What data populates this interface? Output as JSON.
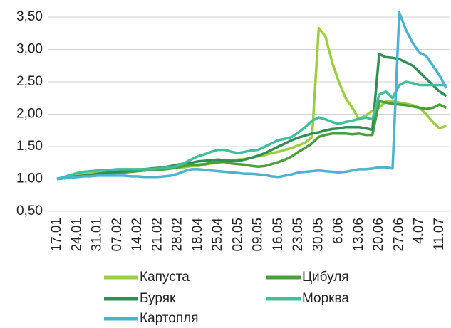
{
  "chart_data": {
    "type": "line",
    "categories": [
      "17.01",
      null,
      null,
      "24.01",
      null,
      null,
      "31.01",
      null,
      null,
      "07.02",
      null,
      null,
      "14.02",
      null,
      null,
      "21.02",
      null,
      null,
      "28.02",
      null,
      null,
      "18.04",
      null,
      null,
      "25.04",
      null,
      null,
      "02.05",
      null,
      null,
      "09.05",
      null,
      null,
      "16.05",
      null,
      null,
      "23.05",
      null,
      null,
      "30.05",
      null,
      null,
      "6.06",
      null,
      null,
      "13.06",
      null,
      null,
      "20.06",
      null,
      null,
      "27.06",
      null,
      null,
      "4.07",
      null,
      null,
      "11.07",
      null
    ],
    "series": [
      {
        "name": "Капуста",
        "color": "#9ccf3e",
        "values": [
          1.0,
          1.02,
          1.04,
          1.06,
          1.07,
          1.08,
          1.1,
          1.11,
          1.12,
          1.13,
          1.13,
          1.14,
          1.14,
          1.15,
          1.15,
          1.15,
          1.15,
          1.16,
          1.17,
          1.18,
          1.2,
          1.2,
          1.22,
          1.24,
          1.25,
          1.27,
          1.28,
          1.3,
          1.31,
          1.33,
          1.35,
          1.37,
          1.4,
          1.42,
          1.45,
          1.48,
          1.52,
          1.56,
          1.65,
          3.33,
          3.2,
          2.8,
          2.5,
          2.25,
          2.1,
          1.92,
          1.98,
          2.05,
          2.1,
          2.2,
          2.2,
          2.18,
          2.16,
          2.14,
          2.1,
          2.0,
          1.88,
          1.78,
          1.82
        ]
      },
      {
        "name": "Цибуля",
        "color": "#4c9e3b",
        "values": [
          1.0,
          1.01,
          1.02,
          1.03,
          1.04,
          1.05,
          1.06,
          1.07,
          1.08,
          1.09,
          1.1,
          1.11,
          1.12,
          1.13,
          1.14,
          1.14,
          1.15,
          1.16,
          1.18,
          1.2,
          1.21,
          1.22,
          1.23,
          1.25,
          1.26,
          1.26,
          1.24,
          1.23,
          1.22,
          1.2,
          1.19,
          1.2,
          1.23,
          1.26,
          1.3,
          1.35,
          1.42,
          1.48,
          1.55,
          1.65,
          1.68,
          1.7,
          1.7,
          1.7,
          1.69,
          1.7,
          1.68,
          1.68,
          2.2,
          2.18,
          2.16,
          2.15,
          2.14,
          2.12,
          2.1,
          2.08,
          2.1,
          2.15,
          2.1
        ]
      },
      {
        "name": "Буряк",
        "color": "#2f8f55",
        "values": [
          1.0,
          1.01,
          1.03,
          1.04,
          1.05,
          1.06,
          1.08,
          1.09,
          1.1,
          1.11,
          1.12,
          1.13,
          1.14,
          1.15,
          1.16,
          1.17,
          1.18,
          1.2,
          1.22,
          1.24,
          1.25,
          1.27,
          1.28,
          1.29,
          1.3,
          1.29,
          1.28,
          1.28,
          1.3,
          1.33,
          1.36,
          1.4,
          1.45,
          1.5,
          1.55,
          1.6,
          1.64,
          1.67,
          1.7,
          1.72,
          1.75,
          1.77,
          1.78,
          1.8,
          1.8,
          1.8,
          1.78,
          1.76,
          2.93,
          2.88,
          2.87,
          2.85,
          2.8,
          2.75,
          2.65,
          2.55,
          2.45,
          2.35,
          2.28
        ]
      },
      {
        "name": "Морква",
        "color": "#3fbf9b",
        "values": [
          1.0,
          1.03,
          1.06,
          1.09,
          1.11,
          1.12,
          1.13,
          1.14,
          1.14,
          1.15,
          1.15,
          1.15,
          1.15,
          1.15,
          1.15,
          1.16,
          1.17,
          1.18,
          1.2,
          1.25,
          1.3,
          1.35,
          1.38,
          1.42,
          1.45,
          1.45,
          1.42,
          1.4,
          1.42,
          1.44,
          1.45,
          1.5,
          1.55,
          1.6,
          1.62,
          1.65,
          1.72,
          1.8,
          1.9,
          1.95,
          1.92,
          1.88,
          1.85,
          1.88,
          1.9,
          1.93,
          1.95,
          1.92,
          2.3,
          2.35,
          2.25,
          2.45,
          2.5,
          2.48,
          2.45,
          2.45,
          2.45,
          2.45,
          2.45
        ]
      },
      {
        "name": "Картопля",
        "color": "#4bb2d2",
        "values": [
          1.0,
          1.01,
          1.02,
          1.03,
          1.04,
          1.04,
          1.05,
          1.05,
          1.05,
          1.05,
          1.05,
          1.04,
          1.04,
          1.03,
          1.03,
          1.03,
          1.04,
          1.05,
          1.08,
          1.12,
          1.15,
          1.15,
          1.14,
          1.13,
          1.12,
          1.11,
          1.1,
          1.09,
          1.08,
          1.08,
          1.07,
          1.06,
          1.04,
          1.03,
          1.05,
          1.07,
          1.1,
          1.11,
          1.12,
          1.13,
          1.12,
          1.11,
          1.1,
          1.11,
          1.13,
          1.15,
          1.15,
          1.16,
          1.18,
          1.18,
          1.16,
          3.57,
          3.3,
          3.1,
          2.95,
          2.9,
          2.75,
          2.6,
          2.4
        ]
      }
    ],
    "ylim": [
      0.5,
      3.5
    ],
    "yticks": [
      {
        "value": 0.5,
        "label": "0,50"
      },
      {
        "value": 1.0,
        "label": "1,00"
      },
      {
        "value": 1.5,
        "label": "1,50"
      },
      {
        "value": 2.0,
        "label": "2,00"
      },
      {
        "value": 2.5,
        "label": "2,50"
      },
      {
        "value": 3.0,
        "label": "3,00"
      },
      {
        "value": 3.5,
        "label": "3,50"
      }
    ],
    "grid": true
  }
}
